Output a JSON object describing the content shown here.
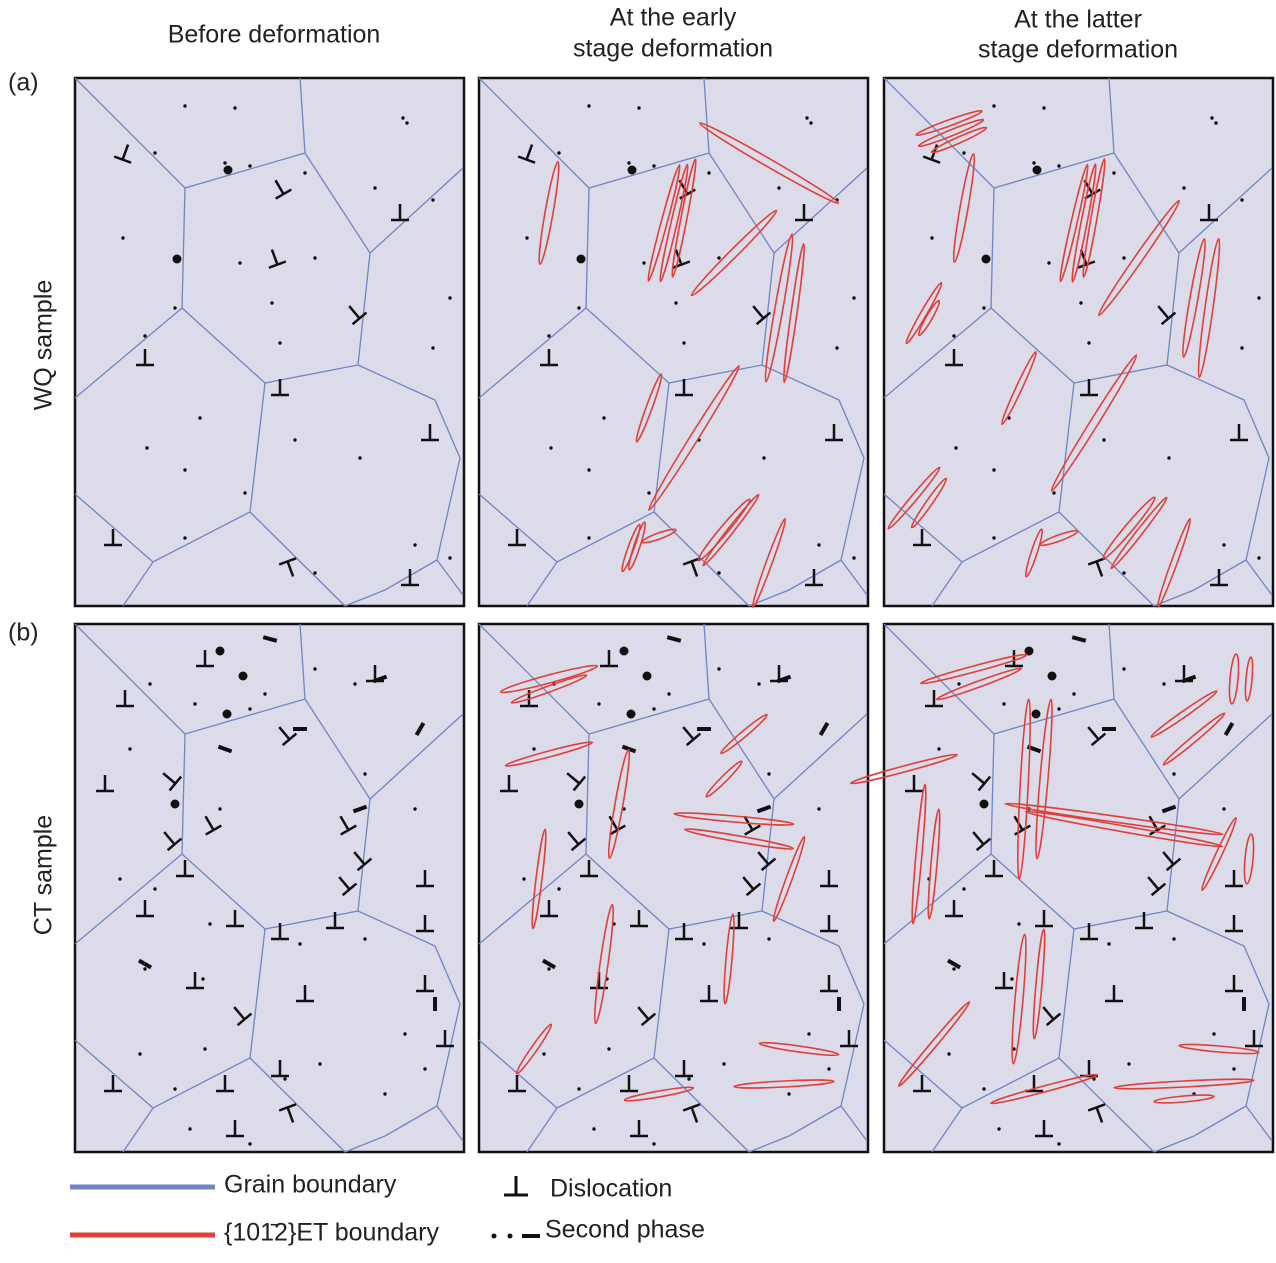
{
  "header": {
    "columns": [
      {
        "lines": [
          "Before deformation"
        ]
      },
      {
        "lines": [
          "At the early",
          "stage deformation"
        ]
      },
      {
        "lines": [
          "At the latter",
          "stage deformation"
        ]
      }
    ]
  },
  "rows": [
    {
      "tag": "(a)",
      "label": "WQ sample"
    },
    {
      "tag": "(b)",
      "label": "CT sample"
    }
  ],
  "legend": {
    "grain_boundary": "Grain boundary",
    "et_boundary": "{101̄2}ET boundary",
    "dislocation": "Dislocation",
    "second_phase": "Second phase"
  }
}
